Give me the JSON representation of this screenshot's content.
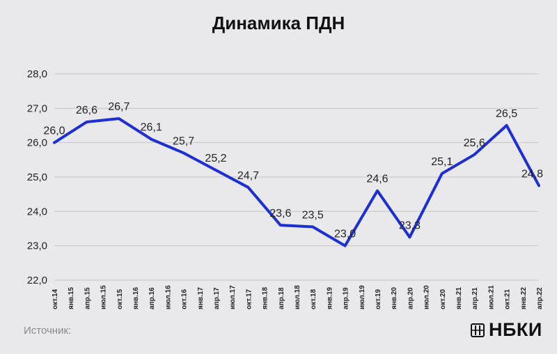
{
  "chart_data": {
    "type": "line",
    "title": "Динамика ПДН",
    "categories": [
      "окт.14",
      "янв.15",
      "апр.15",
      "июл.15",
      "окт.15",
      "янв.16",
      "апр.16",
      "июл.16",
      "окт.16",
      "янв.17",
      "апр.17",
      "июл.17",
      "окт.17",
      "янв.18",
      "апр.18",
      "июл.18",
      "окт.18",
      "янв.19",
      "апр.19",
      "июл.19",
      "окт.19",
      "янв.20",
      "апр.20",
      "июл.20",
      "окт.20",
      "янв.21",
      "апр.21",
      "июл.21",
      "окт.21",
      "янв.22",
      "апр.22"
    ],
    "series": [
      {
        "color": "#1c2fd6",
        "points": [
          {
            "category": "окт.14",
            "value": 26.0,
            "label": "26,0"
          },
          {
            "category": "апр.15",
            "value": 26.6,
            "label": "26,6"
          },
          {
            "category": "окт.15",
            "value": 26.7,
            "label": "26,7"
          },
          {
            "category": "апр.16",
            "value": 26.1,
            "label": "26,1"
          },
          {
            "category": "окт.16",
            "value": 25.7,
            "label": "25,7"
          },
          {
            "category": "апр.17",
            "value": 25.2,
            "label": "25,2"
          },
          {
            "category": "окт.17",
            "value": 24.7,
            "label": "24,7"
          },
          {
            "category": "апр.18",
            "value": 23.6,
            "label": "23,6"
          },
          {
            "category": "окт.18",
            "value": 23.55,
            "label": "23,5"
          },
          {
            "category": "апр.19",
            "value": 23.0,
            "label": "23,0"
          },
          {
            "category": "окт.19",
            "value": 24.6,
            "label": "24,6"
          },
          {
            "category": "апр.20",
            "value": 23.25,
            "label": "23,3"
          },
          {
            "category": "окт.20",
            "value": 25.1,
            "label": "25,1"
          },
          {
            "category": "апр.21",
            "value": 25.65,
            "label": "25,6"
          },
          {
            "category": "окт.21",
            "value": 26.5,
            "label": "26,5"
          },
          {
            "category": "апр.22",
            "value": 24.75,
            "label": "24,8"
          }
        ]
      }
    ],
    "ylim": [
      22.0,
      28.0
    ],
    "yticks": [
      "22,0",
      "23,0",
      "24,0",
      "25,0",
      "26,0",
      "27,0",
      "28,0"
    ],
    "grid": true,
    "legend": "none"
  },
  "footer": {
    "source_label": "Источник:",
    "brand": "НБКИ"
  }
}
